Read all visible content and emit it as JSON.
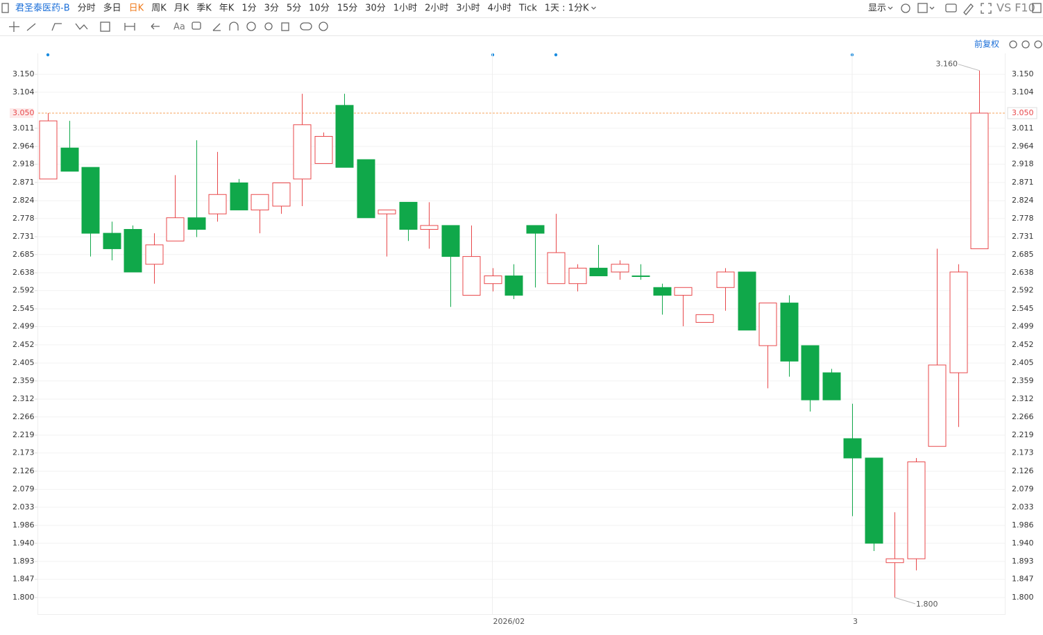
{
  "toolbar": {
    "stock_name": "君圣泰医药-B",
    "periods": [
      "分时",
      "多日",
      "日K",
      "周K",
      "月K",
      "季K",
      "年K",
      "1分",
      "3分",
      "5分",
      "10分",
      "15分",
      "30分",
      "1小时",
      "2小时",
      "3小时",
      "4小时",
      "Tick",
      "1天 : 1分K"
    ],
    "active_period": 2,
    "display": "显示",
    "compare": "VS F10",
    "text_tool": "Aa",
    "adjust": "前复权"
  },
  "chart_data": {
    "type": "candlestick",
    "categories": [
      null,
      null,
      null,
      null,
      null,
      null,
      null,
      null,
      null,
      null,
      null,
      null,
      null,
      null,
      null,
      null,
      null,
      null,
      null,
      null,
      null,
      "2026/02",
      null,
      null,
      null,
      null,
      null,
      null,
      null,
      null,
      null,
      null,
      null,
      null,
      null,
      null,
      null,
      null,
      "3",
      null,
      null,
      null,
      null,
      null,
      null
    ],
    "open": [
      2.88,
      2.96,
      2.91,
      2.74,
      2.75,
      2.66,
      2.72,
      2.78,
      2.79,
      2.87,
      2.8,
      2.81,
      2.88,
      2.92,
      3.07,
      2.93,
      2.79,
      2.82,
      2.75,
      2.76,
      2.58,
      2.61,
      2.63,
      2.76,
      2.61,
      2.61,
      2.65,
      2.64,
      2.63,
      2.6,
      2.58,
      2.51,
      2.6,
      2.64,
      2.45,
      2.56,
      2.45,
      2.38,
      2.21,
      2.16,
      1.89,
      1.9,
      2.19,
      2.38,
      2.7
    ],
    "high": [
      3.05,
      3.03,
      2.91,
      2.77,
      2.76,
      2.74,
      2.89,
      2.98,
      2.95,
      2.88,
      2.84,
      2.87,
      3.1,
      3.0,
      3.1,
      2.93,
      2.8,
      2.82,
      2.82,
      2.76,
      2.76,
      2.65,
      2.66,
      2.76,
      2.79,
      2.66,
      2.71,
      2.67,
      2.66,
      2.61,
      2.6,
      2.53,
      2.65,
      2.64,
      2.56,
      2.58,
      2.45,
      2.39,
      2.3,
      2.16,
      2.02,
      2.16,
      2.7,
      2.66,
      3.16
    ],
    "low": [
      2.88,
      2.9,
      2.68,
      2.67,
      2.64,
      2.61,
      2.72,
      2.73,
      2.77,
      2.8,
      2.74,
      2.79,
      2.81,
      2.92,
      2.91,
      2.78,
      2.68,
      2.72,
      2.7,
      2.55,
      2.58,
      2.59,
      2.57,
      2.6,
      2.61,
      2.59,
      2.63,
      2.62,
      2.62,
      2.53,
      2.5,
      2.51,
      2.54,
      2.49,
      2.34,
      2.37,
      2.28,
      2.31,
      2.01,
      1.92,
      1.8,
      1.87,
      2.19,
      2.24,
      2.7
    ],
    "close": [
      3.03,
      2.9,
      2.74,
      2.7,
      2.64,
      2.71,
      2.78,
      2.75,
      2.84,
      2.8,
      2.84,
      2.87,
      3.02,
      2.99,
      2.91,
      2.78,
      2.8,
      2.75,
      2.76,
      2.68,
      2.68,
      2.63,
      2.58,
      2.74,
      2.69,
      2.65,
      2.63,
      2.66,
      2.63,
      2.58,
      2.6,
      2.53,
      2.64,
      2.49,
      2.56,
      2.41,
      2.31,
      2.31,
      2.16,
      1.94,
      1.9,
      2.15,
      2.4,
      2.64,
      3.05
    ],
    "up_color": "#e8474a",
    "down_color": "#10a84a",
    "ylim": [
      1.757,
      3.204
    ],
    "yticks": [
      {
        "value": 3.15,
        "label": "3.150"
      },
      3.104,
      3.011,
      2.964,
      2.918,
      2.871,
      2.824,
      2.778,
      2.731,
      2.685,
      2.638,
      2.592,
      2.545,
      2.499,
      2.452,
      2.405,
      2.359,
      2.312,
      2.266,
      2.219,
      2.173,
      2.126,
      2.079,
      2.033,
      1.986,
      {
        "value": 1.94,
        "label": "1.940"
      },
      1.893,
      1.847,
      {
        "value": 1.8,
        "label": "1.800"
      }
    ],
    "last_price": {
      "value": 3.05,
      "label": "3.050"
    },
    "high_label": {
      "value": 3.16,
      "label": "3.160"
    },
    "low_label": {
      "value": 1.8,
      "label": "1.800"
    },
    "grid": true
  }
}
